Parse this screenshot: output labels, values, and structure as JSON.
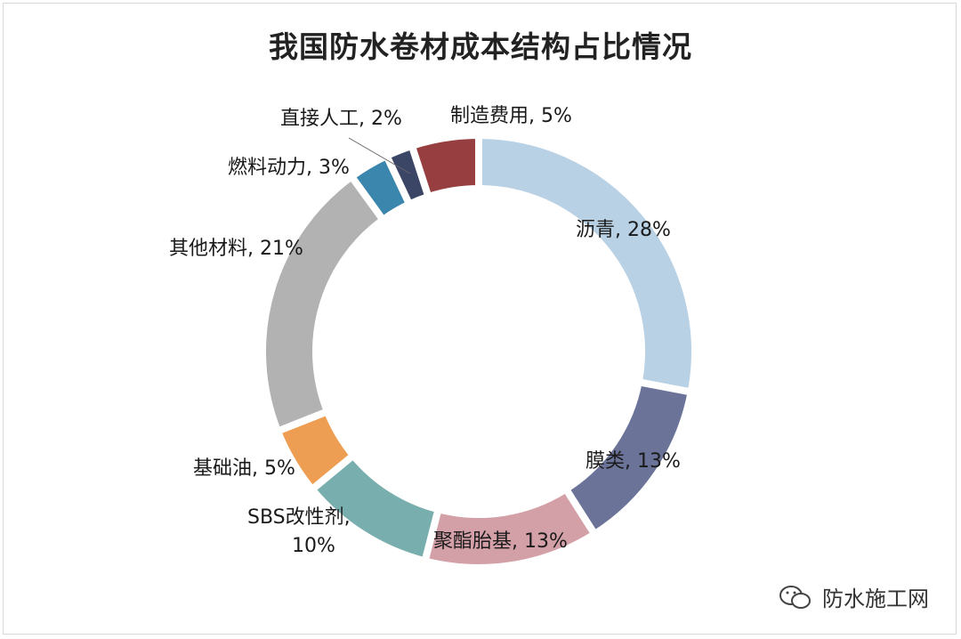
{
  "chart_data": {
    "type": "pie",
    "variant": "donut",
    "title": "我国防水卷材成本结构占比情况",
    "categories": [
      "沥青",
      "膜类",
      "聚酯胎基",
      "SBS改性剂",
      "基础油",
      "其他材料",
      "燃料动力",
      "直接人工",
      "制造费用"
    ],
    "values": [
      28,
      13,
      13,
      10,
      5,
      21,
      3,
      2,
      5
    ],
    "labels": [
      "沥青, 28%",
      "膜类, 13%",
      "聚酯胎基, 13%",
      "SBS改性剂,|10%",
      "基础油, 5%",
      "其他材料, 21%",
      "燃料动力, 3%",
      "直接人工, 2%",
      "制造费用, 5%"
    ],
    "colors": [
      "#b9d1e5",
      "#6b7498",
      "#d3a0a8",
      "#79aeae",
      "#ee9e52",
      "#b2b2b2",
      "#3b86ad",
      "#3b4566",
      "#963e40"
    ],
    "start": "top, clockwise",
    "legend": "none (data labels)"
  },
  "watermark": "防水施工网"
}
